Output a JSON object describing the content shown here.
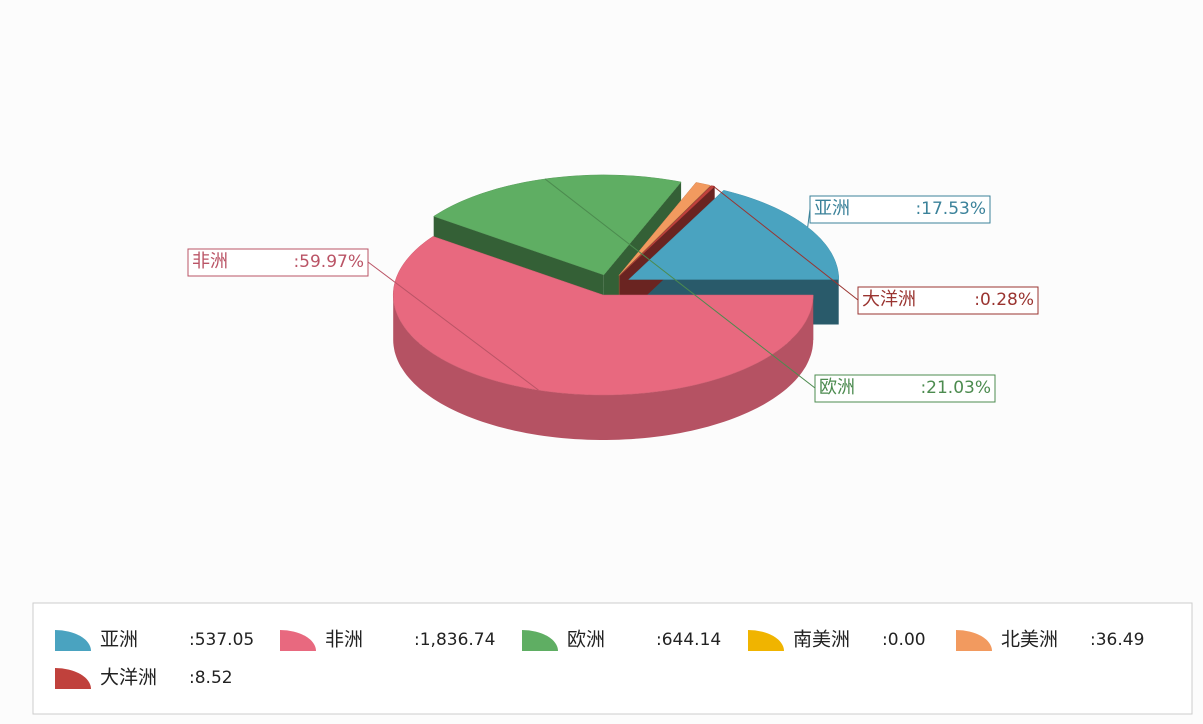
{
  "chart_data": {
    "type": "pie3d",
    "categories": [
      "亚洲",
      "非洲",
      "欧洲",
      "南美洲",
      "北美洲",
      "大洋洲"
    ],
    "values": [
      537.05,
      1836.74,
      644.14,
      0.0,
      36.49,
      8.52
    ],
    "value_labels": [
      ":537.05",
      ":1,836.74",
      ":644.14",
      ":0.00",
      ":36.49",
      ":8.52"
    ],
    "slice_labels": [
      ":17.53%",
      ":59.97%",
      ":21.03%",
      null,
      null,
      ":0.28%"
    ],
    "colors": [
      "#4aa3c0",
      "#e8697f",
      "#5fae63",
      "#f0b400",
      "#f29a5f",
      "#c0413c"
    ],
    "legend": "bottom"
  }
}
